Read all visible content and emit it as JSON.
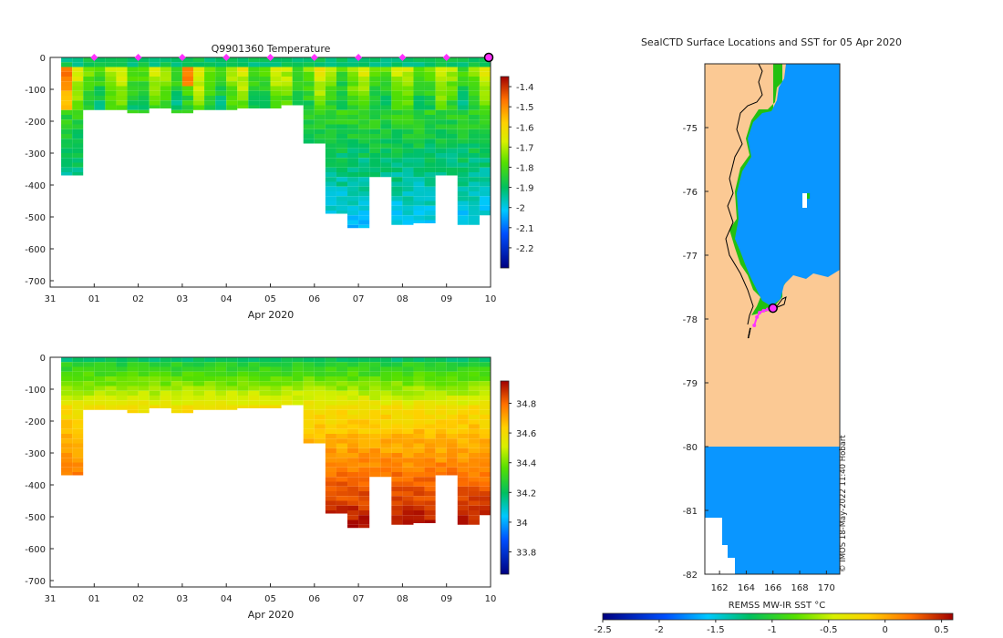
{
  "chart_data": [
    {
      "type": "heatmap",
      "panel": "temperature-section",
      "title": "Q9901360  Temperature",
      "xlabel": "Apr 2020",
      "ylabel": "",
      "x_ticks": [
        "31",
        "01",
        "02",
        "03",
        "04",
        "05",
        "06",
        "07",
        "08",
        "09",
        "10"
      ],
      "x_range_days": [
        0,
        10
      ],
      "ylim": [
        -720,
        0
      ],
      "y_ticks": [
        0,
        -100,
        -200,
        -300,
        -400,
        -500,
        -600,
        -700
      ],
      "colorbar": {
        "label": "",
        "range": [
          -2.3,
          -1.35
        ],
        "ticks": [
          -1.4,
          -1.5,
          -1.6,
          -1.7,
          -1.8,
          -1.9,
          -2,
          -2.1,
          -2.2
        ]
      },
      "profile_times_days": [
        0.5,
        1.0,
        1.5,
        2.0,
        2.5,
        3.0,
        3.5,
        4.0,
        4.5,
        5.0,
        5.5,
        6.0,
        6.5,
        7.0,
        7.5,
        8.0,
        8.5,
        9.0,
        9.5,
        10.0
      ],
      "profile_max_depth_m": [
        -370,
        -165,
        -170,
        -175,
        -160,
        -175,
        -165,
        -165,
        -160,
        -160,
        -150,
        -275,
        -490,
        -535,
        -375,
        -525,
        -520,
        -370,
        -530,
        -495
      ],
      "surface_markers_days": [
        1,
        2,
        3,
        4,
        5,
        6,
        7,
        8,
        9
      ],
      "latest_marker_day": 10
    },
    {
      "type": "heatmap",
      "panel": "salinity-section",
      "title": "",
      "xlabel": "Apr 2020",
      "ylabel": "",
      "x_ticks": [
        "31",
        "01",
        "02",
        "03",
        "04",
        "05",
        "06",
        "07",
        "08",
        "09",
        "10"
      ],
      "x_range_days": [
        0,
        10
      ],
      "ylim": [
        -720,
        0
      ],
      "y_ticks": [
        0,
        -100,
        -200,
        -300,
        -400,
        -500,
        -600,
        -700
      ],
      "colorbar": {
        "label": "",
        "range": [
          33.65,
          34.95
        ],
        "ticks": [
          34.8,
          34.6,
          34.4,
          34.2,
          34,
          33.8
        ]
      }
    },
    {
      "type": "heatmap",
      "panel": "sst-map",
      "title": "SealCTD Surface Locations and SST for 05 Apr 2020",
      "xlabel": "",
      "ylabel": "",
      "x_ticks": [
        "162",
        "164",
        "166",
        "168",
        "170"
      ],
      "xlim": [
        160.9,
        171.0
      ],
      "y_ticks": [
        "-75",
        "-76",
        "-77",
        "-78",
        "-79",
        "-80",
        "-81",
        "-82"
      ],
      "ylim": [
        -82.0,
        -74.0
      ],
      "track_points": [
        [
          164.6,
          -78.1
        ],
        [
          164.8,
          -77.97
        ],
        [
          165.0,
          -77.9
        ],
        [
          165.3,
          -77.87
        ],
        [
          165.6,
          -77.85
        ],
        [
          165.9,
          -77.83
        ]
      ],
      "latest_location": [
        166.0,
        -77.83
      ],
      "credit": "© IMOS 18-May-2022 11:40 Hobart"
    },
    {
      "type": "colorbar",
      "panel": "sst-colorbar",
      "label": "REMSS MW-IR SST °C",
      "range": [
        -2.5,
        0.6
      ],
      "ticks": [
        "-2.5",
        "-2",
        "-1.5",
        "-1",
        "-0.5",
        "0",
        "0.5"
      ]
    }
  ],
  "colors": {
    "land": "#fbc994",
    "sea_sst": "#0a96ff",
    "marker": "#ff33ff",
    "axis": "#262626"
  }
}
